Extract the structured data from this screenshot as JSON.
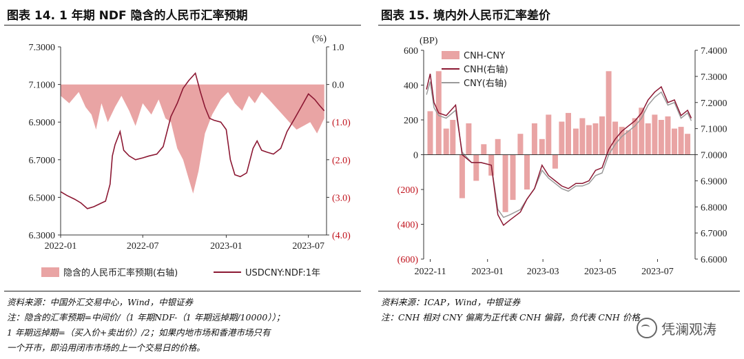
{
  "left": {
    "title": "图表 14. 1 年期 NDF 隐含的人民币汇率预期",
    "source": "资料来源：中国外汇交易中心，Wind，中银证券",
    "note_lines": [
      "注：隐含的汇率预期=中间价/（1 年期NDF-（1 年期远掉期/10000））；",
      "1 年期远掉期=（买入价+卖出价）/2；如果内地市场和香港市场只有",
      "一个开市，即沿用闭市市场的上一个交易日的价格。"
    ],
    "right_axis_unit": "(%)",
    "legend": [
      "隐含的人民币汇率预期(右轴)",
      "USDCNY:NDF:1年"
    ],
    "colors": {
      "bar": "#e9a4a4",
      "line": "#8b1732",
      "right_tick": "#c0111b"
    }
  },
  "right": {
    "title": "图表 15. 境内外人民币汇率差价",
    "source": "资料来源：ICAP，Wind，中银证券",
    "note": "注：CNH 相对 CNY 偏离为正代表 CNH 偏弱，负代表 CNH 价格",
    "left_axis_unit": "(BP)",
    "legend": [
      "CNH-CNY",
      "CNH(右轴)",
      "CNY(右轴)"
    ],
    "colors": {
      "bar": "#e9a4a4",
      "cnh": "#8b1732",
      "cny": "#9a9a9a",
      "left_neg_tick": "#c0111b"
    }
  },
  "watermark": "凭澜观涛",
  "chart_data": [
    {
      "type": "bar",
      "title": "图表 14. 1 年期 NDF 隐含的人民币汇率预期",
      "x_ticks": [
        "2022-01",
        "2022-07",
        "2023-01",
        "2023-07"
      ],
      "x_range": [
        "2022-01-01",
        "2023-08-10"
      ],
      "y_left": {
        "ticks": [
          "6.3000",
          "6.5000",
          "6.7000",
          "6.9000",
          "7.1000",
          "7.3000"
        ],
        "lim": [
          6.3,
          7.3
        ]
      },
      "y_right": {
        "ticks": [
          "(4.0)",
          "(3.0)",
          "(2.0)",
          "(1.0)",
          "0.0",
          "1.0"
        ],
        "lim": [
          -4.0,
          1.0
        ],
        "unit": "%"
      },
      "series": [
        {
          "name": "隐含的人民币汇率预期(右轴)",
          "type": "area",
          "axis": "right",
          "points": [
            [
              "2022-01-01",
              -0.3
            ],
            [
              "2022-01-20",
              -0.5
            ],
            [
              "2022-02-10",
              -0.2
            ],
            [
              "2022-02-25",
              -0.6
            ],
            [
              "2022-03-10",
              -0.8
            ],
            [
              "2022-03-20",
              -1.2
            ],
            [
              "2022-04-01",
              -0.5
            ],
            [
              "2022-04-15",
              -1.0
            ],
            [
              "2022-05-01",
              -0.6
            ],
            [
              "2022-05-15",
              -0.3
            ],
            [
              "2022-06-01",
              -0.7
            ],
            [
              "2022-06-15",
              -1.1
            ],
            [
              "2022-07-01",
              -0.5
            ],
            [
              "2022-07-20",
              -0.8
            ],
            [
              "2022-08-05",
              -0.4
            ],
            [
              "2022-08-20",
              -0.9
            ],
            [
              "2022-09-01",
              -1.0
            ],
            [
              "2022-09-15",
              -1.7
            ],
            [
              "2022-09-28",
              -2.0
            ],
            [
              "2022-10-10",
              -2.5
            ],
            [
              "2022-10-20",
              -2.9
            ],
            [
              "2022-11-01",
              -2.3
            ],
            [
              "2022-11-15",
              -1.3
            ],
            [
              "2022-12-01",
              -0.8
            ],
            [
              "2022-12-20",
              -0.4
            ],
            [
              "2023-01-05",
              -0.2
            ],
            [
              "2023-01-20",
              -0.5
            ],
            [
              "2023-02-05",
              -0.7
            ],
            [
              "2023-02-20",
              -0.3
            ],
            [
              "2023-03-05",
              -0.5
            ],
            [
              "2023-03-20",
              -0.2
            ],
            [
              "2023-04-05",
              -0.4
            ],
            [
              "2023-04-20",
              -0.6
            ],
            [
              "2023-05-05",
              -0.8
            ],
            [
              "2023-05-20",
              -1.0
            ],
            [
              "2023-06-05",
              -1.2
            ],
            [
              "2023-06-20",
              -1.1
            ],
            [
              "2023-07-05",
              -1.0
            ],
            [
              "2023-07-20",
              -1.3
            ],
            [
              "2023-08-05",
              -0.9
            ]
          ]
        },
        {
          "name": "USDCNY:NDF:1年",
          "type": "line",
          "axis": "left",
          "points": [
            [
              "2022-01-01",
              6.53
            ],
            [
              "2022-01-15",
              6.51
            ],
            [
              "2022-02-01",
              6.49
            ],
            [
              "2022-02-15",
              6.47
            ],
            [
              "2022-03-01",
              6.44
            ],
            [
              "2022-03-15",
              6.45
            ],
            [
              "2022-04-01",
              6.47
            ],
            [
              "2022-04-10",
              6.48
            ],
            [
              "2022-04-20",
              6.57
            ],
            [
              "2022-04-25",
              6.72
            ],
            [
              "2022-05-01",
              6.78
            ],
            [
              "2022-05-12",
              6.85
            ],
            [
              "2022-05-20",
              6.75
            ],
            [
              "2022-06-01",
              6.72
            ],
            [
              "2022-06-15",
              6.7
            ],
            [
              "2022-07-01",
              6.71
            ],
            [
              "2022-07-15",
              6.72
            ],
            [
              "2022-08-01",
              6.73
            ],
            [
              "2022-08-15",
              6.77
            ],
            [
              "2022-09-01",
              6.93
            ],
            [
              "2022-09-15",
              7.0
            ],
            [
              "2022-09-28",
              7.08
            ],
            [
              "2022-10-10",
              7.12
            ],
            [
              "2022-10-25",
              7.16
            ],
            [
              "2022-11-05",
              7.06
            ],
            [
              "2022-11-15",
              6.98
            ],
            [
              "2022-11-25",
              6.92
            ],
            [
              "2022-12-05",
              6.91
            ],
            [
              "2022-12-20",
              6.9
            ],
            [
              "2023-01-01",
              6.86
            ],
            [
              "2023-01-10",
              6.7
            ],
            [
              "2023-01-20",
              6.62
            ],
            [
              "2023-02-01",
              6.61
            ],
            [
              "2023-02-15",
              6.63
            ],
            [
              "2023-03-01",
              6.76
            ],
            [
              "2023-03-10",
              6.8
            ],
            [
              "2023-03-20",
              6.75
            ],
            [
              "2023-04-01",
              6.74
            ],
            [
              "2023-04-15",
              6.73
            ],
            [
              "2023-05-01",
              6.76
            ],
            [
              "2023-05-15",
              6.85
            ],
            [
              "2023-06-01",
              6.92
            ],
            [
              "2023-06-15",
              6.98
            ],
            [
              "2023-07-01",
              7.05
            ],
            [
              "2023-07-15",
              7.02
            ],
            [
              "2023-07-25",
              6.99
            ],
            [
              "2023-08-05",
              6.96
            ]
          ]
        }
      ]
    },
    {
      "type": "bar",
      "title": "图表 15. 境内外人民币汇率差价",
      "x_ticks": [
        "2022-11",
        "2023-01",
        "2023-03",
        "2023-05",
        "2023-07"
      ],
      "x_range": [
        "2022-10-25",
        "2023-08-10"
      ],
      "y_left": {
        "ticks": [
          "(600)",
          "(400)",
          "(200)",
          "0",
          "200",
          "400",
          "600"
        ],
        "lim": [
          -600,
          600
        ],
        "unit": "BP"
      },
      "y_right": {
        "ticks": [
          "6.6000",
          "6.7000",
          "6.8000",
          "6.9000",
          "7.0000",
          "7.1000",
          "7.2000",
          "7.3000",
          "7.4000"
        ],
        "lim": [
          6.6,
          7.4
        ]
      },
      "series": [
        {
          "name": "CNH-CNY",
          "type": "bar",
          "axis": "left",
          "points": [
            [
              "2022-11-01",
              250
            ],
            [
              "2022-11-10",
              480
            ],
            [
              "2022-11-18",
              150
            ],
            [
              "2022-11-25",
              200
            ],
            [
              "2022-12-05",
              -250
            ],
            [
              "2022-12-12",
              180
            ],
            [
              "2022-12-20",
              -150
            ],
            [
              "2022-12-28",
              60
            ],
            [
              "2023-01-05",
              -120
            ],
            [
              "2023-01-12",
              90
            ],
            [
              "2023-01-20",
              -330
            ],
            [
              "2023-01-28",
              -260
            ],
            [
              "2023-02-05",
              120
            ],
            [
              "2023-02-12",
              -200
            ],
            [
              "2023-02-20",
              180
            ],
            [
              "2023-02-28",
              90
            ],
            [
              "2023-03-07",
              230
            ],
            [
              "2023-03-14",
              -80
            ],
            [
              "2023-03-21",
              190
            ],
            [
              "2023-03-28",
              240
            ],
            [
              "2023-04-05",
              150
            ],
            [
              "2023-04-12",
              210
            ],
            [
              "2023-04-19",
              170
            ],
            [
              "2023-04-26",
              180
            ],
            [
              "2023-05-03",
              220
            ],
            [
              "2023-05-10",
              480
            ],
            [
              "2023-05-17",
              190
            ],
            [
              "2023-05-24",
              160
            ],
            [
              "2023-05-31",
              140
            ],
            [
              "2023-06-07",
              210
            ],
            [
              "2023-06-14",
              270
            ],
            [
              "2023-06-21",
              180
            ],
            [
              "2023-06-28",
              230
            ],
            [
              "2023-07-05",
              200
            ],
            [
              "2023-07-12",
              220
            ],
            [
              "2023-07-19",
              150
            ],
            [
              "2023-07-26",
              160
            ],
            [
              "2023-08-02",
              120
            ]
          ]
        },
        {
          "name": "CNH(右轴)",
          "type": "line",
          "axis": "right",
          "points": [
            [
              "2022-10-28",
              7.25
            ],
            [
              "2022-11-01",
              7.31
            ],
            [
              "2022-11-05",
              7.2
            ],
            [
              "2022-11-10",
              7.16
            ],
            [
              "2022-11-18",
              7.15
            ],
            [
              "2022-11-28",
              7.19
            ],
            [
              "2022-12-05",
              7.0
            ],
            [
              "2022-12-15",
              6.97
            ],
            [
              "2022-12-25",
              6.97
            ],
            [
              "2023-01-05",
              6.96
            ],
            [
              "2023-01-12",
              6.77
            ],
            [
              "2023-01-18",
              6.73
            ],
            [
              "2023-01-25",
              6.75
            ],
            [
              "2023-02-05",
              6.78
            ],
            [
              "2023-02-12",
              6.83
            ],
            [
              "2023-02-20",
              6.87
            ],
            [
              "2023-02-28",
              6.96
            ],
            [
              "2023-03-07",
              6.92
            ],
            [
              "2023-03-14",
              6.9
            ],
            [
              "2023-03-21",
              6.88
            ],
            [
              "2023-03-28",
              6.87
            ],
            [
              "2023-04-05",
              6.89
            ],
            [
              "2023-04-12",
              6.89
            ],
            [
              "2023-04-19",
              6.9
            ],
            [
              "2023-04-26",
              6.94
            ],
            [
              "2023-05-03",
              6.95
            ],
            [
              "2023-05-10",
              7.02
            ],
            [
              "2023-05-17",
              7.06
            ],
            [
              "2023-05-24",
              7.09
            ],
            [
              "2023-05-31",
              7.11
            ],
            [
              "2023-06-07",
              7.13
            ],
            [
              "2023-06-14",
              7.16
            ],
            [
              "2023-06-21",
              7.21
            ],
            [
              "2023-06-28",
              7.24
            ],
            [
              "2023-07-05",
              7.26
            ],
            [
              "2023-07-12",
              7.2
            ],
            [
              "2023-07-19",
              7.21
            ],
            [
              "2023-07-26",
              7.15
            ],
            [
              "2023-08-02",
              7.17
            ],
            [
              "2023-08-06",
              7.14
            ]
          ]
        },
        {
          "name": "CNY(右轴)",
          "type": "line",
          "axis": "right",
          "points": [
            [
              "2022-10-28",
              7.23
            ],
            [
              "2022-11-01",
              7.28
            ],
            [
              "2022-11-05",
              7.18
            ],
            [
              "2022-11-10",
              7.15
            ],
            [
              "2022-11-18",
              7.14
            ],
            [
              "2022-11-28",
              7.17
            ],
            [
              "2022-12-05",
              7.01
            ],
            [
              "2022-12-15",
              6.97
            ],
            [
              "2022-12-25",
              6.97
            ],
            [
              "2023-01-05",
              6.96
            ],
            [
              "2023-01-12",
              6.79
            ],
            [
              "2023-01-18",
              6.76
            ],
            [
              "2023-01-25",
              6.77
            ],
            [
              "2023-02-05",
              6.79
            ],
            [
              "2023-02-12",
              6.83
            ],
            [
              "2023-02-20",
              6.87
            ],
            [
              "2023-02-28",
              6.94
            ],
            [
              "2023-03-07",
              6.91
            ],
            [
              "2023-03-14",
              6.89
            ],
            [
              "2023-03-21",
              6.87
            ],
            [
              "2023-03-28",
              6.86
            ],
            [
              "2023-04-05",
              6.88
            ],
            [
              "2023-04-12",
              6.88
            ],
            [
              "2023-04-19",
              6.89
            ],
            [
              "2023-04-26",
              6.92
            ],
            [
              "2023-05-03",
              6.93
            ],
            [
              "2023-05-10",
              7.0
            ],
            [
              "2023-05-17",
              7.04
            ],
            [
              "2023-05-24",
              7.07
            ],
            [
              "2023-05-31",
              7.09
            ],
            [
              "2023-06-07",
              7.11
            ],
            [
              "2023-06-14",
              7.14
            ],
            [
              "2023-06-21",
              7.19
            ],
            [
              "2023-06-28",
              7.22
            ],
            [
              "2023-07-05",
              7.24
            ],
            [
              "2023-07-12",
              7.19
            ],
            [
              "2023-07-19",
              7.2
            ],
            [
              "2023-07-26",
              7.14
            ],
            [
              "2023-08-02",
              7.16
            ],
            [
              "2023-08-06",
              7.13
            ]
          ]
        }
      ]
    }
  ]
}
